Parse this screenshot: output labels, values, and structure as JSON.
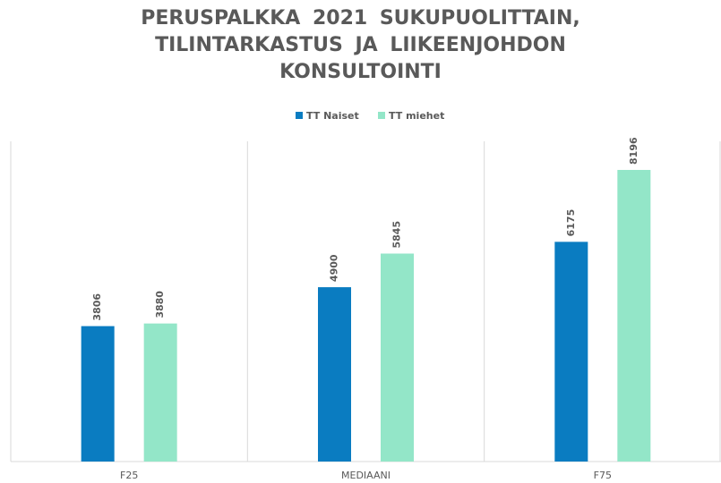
{
  "chart_data": {
    "type": "bar",
    "title": "PERUSPALKKA 2021 SUKUPUOLITTAIN, TILINTARKASTUS JA LIIKEENJOHDON KONSULTOINTI",
    "categories": [
      "F25",
      "MEDIAANI",
      "F75"
    ],
    "series": [
      {
        "name": "TT Naiset",
        "color": "#0a7cc1",
        "values": [
          3806,
          4900,
          6175
        ]
      },
      {
        "name": "TT miehet",
        "color": "#93e6c8",
        "values": [
          3880,
          5845,
          8196
        ]
      }
    ],
    "ylim": [
      0,
      9000
    ],
    "legend": "top"
  }
}
